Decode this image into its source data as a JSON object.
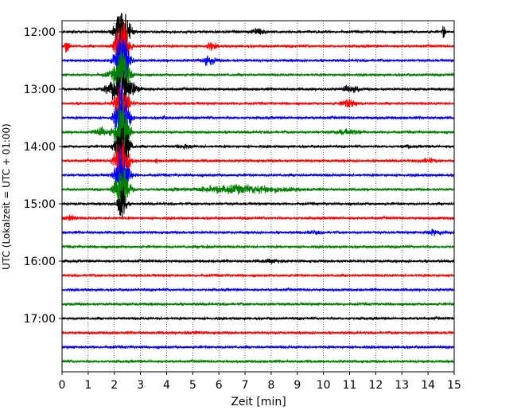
{
  "chart_data": {
    "type": "line",
    "title": "",
    "xlabel": "Zeit  [min]",
    "ylabel": "UTC (Lokalzeit = UTC + 01:00)",
    "xlim": [
      0,
      15
    ],
    "x_ticks": [
      0,
      1,
      2,
      3,
      4,
      5,
      6,
      7,
      8,
      9,
      10,
      11,
      12,
      13,
      14,
      15
    ],
    "y_tick_labels": [
      "12:00",
      "13:00",
      "14:00",
      "15:00",
      "16:00",
      "17:00"
    ],
    "grid": "vertical dotted at every minute",
    "trace_interval_minutes": 15,
    "trace_count": 24,
    "trace_color_cycle": [
      "#000000",
      "#ff0000",
      "#0000ff",
      "#008000"
    ],
    "traces": [
      {
        "start": "12:00",
        "events": [
          {
            "t": 7.5,
            "amp": 1.0,
            "dur": 0.5
          },
          {
            "t": 14.6,
            "amp": 2.0,
            "dur": 0.1
          },
          {
            "t": 2.3,
            "amp": 8,
            "dur": 0.5
          }
        ]
      },
      {
        "start": "12:15",
        "events": [
          {
            "t": 0.2,
            "amp": 2.0,
            "dur": 0.2
          },
          {
            "t": 5.7,
            "amp": 0.8,
            "dur": 0.4
          },
          {
            "t": 2.3,
            "amp": 8,
            "dur": 0.5
          }
        ]
      },
      {
        "start": "12:30",
        "events": [
          {
            "t": 5.6,
            "amp": 1.0,
            "dur": 0.5
          },
          {
            "t": 2.3,
            "amp": 8,
            "dur": 0.5
          }
        ]
      },
      {
        "start": "12:45",
        "events": [
          {
            "t": 2.3,
            "amp": 8,
            "dur": 0.5
          },
          {
            "t": 1.8,
            "amp": 0.5,
            "dur": 0.5
          }
        ]
      },
      {
        "start": "13:00",
        "events": [
          {
            "t": 2.3,
            "amp": 4,
            "dur": 1.0
          },
          {
            "t": 11.0,
            "amp": 0.8,
            "dur": 0.5
          },
          {
            "t": 11.3,
            "amp": 0.8,
            "dur": 0.1
          }
        ]
      },
      {
        "start": "13:15",
        "events": [
          {
            "t": 11.0,
            "amp": 1.0,
            "dur": 0.6
          },
          {
            "t": 2.3,
            "amp": 6,
            "dur": 0.5
          }
        ]
      },
      {
        "start": "13:30",
        "events": [
          {
            "t": 2.3,
            "amp": 8,
            "dur": 0.5
          },
          {
            "t": 3.9,
            "amp": 0.3,
            "dur": 0.2
          }
        ]
      },
      {
        "start": "13:45",
        "events": [
          {
            "t": 1.5,
            "amp": 0.9,
            "dur": 0.6
          },
          {
            "t": 11.0,
            "amp": 0.6,
            "dur": 1.0
          },
          {
            "t": 2.3,
            "amp": 8,
            "dur": 0.5
          }
        ]
      },
      {
        "start": "14:00",
        "events": [
          {
            "t": 4.7,
            "amp": 0.5,
            "dur": 0.5
          },
          {
            "t": 13.2,
            "amp": 0.3,
            "dur": 0.4
          },
          {
            "t": 2.3,
            "amp": 8,
            "dur": 0.5
          }
        ]
      },
      {
        "start": "14:15",
        "events": [
          {
            "t": 14.0,
            "amp": 0.5,
            "dur": 0.6
          },
          {
            "t": 3.6,
            "amp": 0.5,
            "dur": 0.1
          },
          {
            "t": 2.3,
            "amp": 8,
            "dur": 0.5
          }
        ]
      },
      {
        "start": "14:30",
        "events": [
          {
            "t": 2.3,
            "amp": 8,
            "dur": 0.5
          }
        ]
      },
      {
        "start": "14:45",
        "events": [
          {
            "t": 6.8,
            "amp": 1.0,
            "dur": 3.5
          },
          {
            "t": 2.3,
            "amp": 8,
            "dur": 0.5
          }
        ]
      },
      {
        "start": "15:00",
        "events": [
          {
            "t": 2.3,
            "amp": 6,
            "dur": 0.3
          }
        ]
      },
      {
        "start": "15:15",
        "events": [
          {
            "t": 0.3,
            "amp": 0.6,
            "dur": 0.5
          }
        ]
      },
      {
        "start": "15:30",
        "events": [
          {
            "t": 14.3,
            "amp": 0.6,
            "dur": 0.8
          },
          {
            "t": 9.6,
            "amp": 0.3,
            "dur": 0.6
          }
        ]
      },
      {
        "start": "15:45",
        "events": [
          {
            "t": 5.5,
            "amp": 0.3,
            "dur": 0.5
          }
        ]
      },
      {
        "start": "16:00",
        "events": [
          {
            "t": 8.1,
            "amp": 0.4,
            "dur": 0.8
          }
        ]
      },
      {
        "start": "16:15",
        "events": []
      },
      {
        "start": "16:30",
        "events": []
      },
      {
        "start": "16:45",
        "events": []
      },
      {
        "start": "17:00",
        "events": []
      },
      {
        "start": "17:15",
        "events": [
          {
            "t": 5.0,
            "amp": 0.3,
            "dur": 0.6
          }
        ]
      },
      {
        "start": "17:30",
        "events": []
      },
      {
        "start": "17:45",
        "events": []
      }
    ]
  }
}
